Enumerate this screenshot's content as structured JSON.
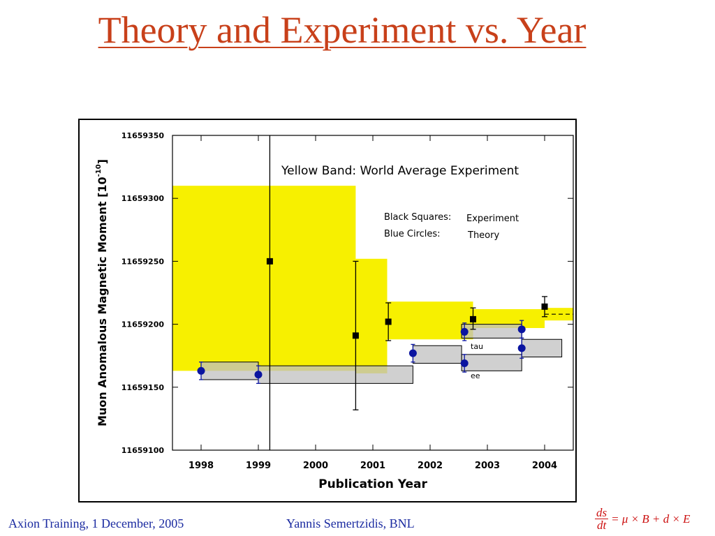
{
  "slide": {
    "title": "Theory and Experiment vs. Year",
    "footer_left": "Axion Training, 1 December, 2005",
    "footer_center": "Yannis Semertzidis, BNL",
    "equation": {
      "numerator": "ds",
      "denominator": "dt",
      "rhs": "= μ × B + d × E"
    }
  },
  "colors": {
    "title": "#c8401a",
    "footer": "#1a2aa0",
    "equation": "#cc1010",
    "band": "#f7f000",
    "theory_box": "#c0c0c0",
    "theory_point": "#0a14a0",
    "experiment_point": "#000000"
  },
  "chart_data": {
    "type": "scatter",
    "xlabel": "Publication Year",
    "ylabel": "Muon Anomalous Magnetic Moment [10",
    "ylabel_sup": "-10",
    "ylabel_end": "]",
    "xlim": [
      1997.5,
      2004.5
    ],
    "ylim": [
      11659100,
      11659350
    ],
    "x_ticks": [
      1998,
      1999,
      2000,
      2001,
      2002,
      2003,
      2004
    ],
    "x_tick_labels": [
      "1998",
      "1999",
      "2000",
      "2001",
      "2002",
      "2003",
      "2004"
    ],
    "y_ticks": [
      11659100,
      11659150,
      11659200,
      11659250,
      11659300,
      11659350
    ],
    "y_tick_labels": [
      "11659100",
      "11659150",
      "11659200",
      "11659250",
      "11659300",
      "11659350"
    ],
    "annotations": {
      "band_title": "Yellow Band: World Average Experiment",
      "legend_exp_key": "Black Squares:",
      "legend_exp_val": "Experiment",
      "legend_th_key": "Blue Circles:",
      "legend_th_val": "Theory",
      "tau": "tau",
      "ee": "ee"
    },
    "world_average_bands": [
      {
        "x0": 1997.5,
        "x1": 2000.7,
        "y0": 11659163,
        "y1": 11659310
      },
      {
        "x0": 2000.7,
        "x1": 2001.25,
        "y0": 11659161,
        "y1": 11659252
      },
      {
        "x0": 2001.25,
        "x1": 2002.75,
        "y0": 11659188,
        "y1": 11659218
      },
      {
        "x0": 2002.75,
        "x1": 2004.0,
        "y0": 11659197,
        "y1": 11659212
      },
      {
        "x0": 2004.0,
        "x1": 2004.5,
        "y0": 11659203,
        "y1": 11659213
      }
    ],
    "world_average_line": {
      "x0": 2004.0,
      "x1": 2004.5,
      "y": 11659208
    },
    "experiment": [
      {
        "x": 1999.2,
        "y": 11659250,
        "y_low": 11659050,
        "y_high": 11659450
      },
      {
        "x": 2000.7,
        "y": 11659191,
        "y_low": 11659132,
        "y_high": 11659250
      },
      {
        "x": 2001.27,
        "y": 11659202,
        "y_low": 11659187,
        "y_high": 11659217
      },
      {
        "x": 2002.75,
        "y": 11659204,
        "y_low": 11659196,
        "y_high": 11659213
      },
      {
        "x": 2004.0,
        "y": 11659214,
        "y_low": 11659206,
        "y_high": 11659222
      }
    ],
    "theory_boxes": [
      {
        "x0": 1998.0,
        "x1": 1999.0,
        "y0": 11659156,
        "y1": 11659170
      },
      {
        "x0": 1999.0,
        "x1": 2001.7,
        "y0": 11659153,
        "y1": 11659167
      },
      {
        "x0": 2001.7,
        "x1": 2002.55,
        "y0": 11659169,
        "y1": 11659183
      },
      {
        "x0": 2002.55,
        "x1": 2003.6,
        "y0": 11659189,
        "y1": 11659200
      },
      {
        "x0": 2002.55,
        "x1": 2003.6,
        "y0": 11659163,
        "y1": 11659176
      },
      {
        "x0": 2003.6,
        "x1": 2004.3,
        "y0": 11659174,
        "y1": 11659188
      }
    ],
    "theory": [
      {
        "x": 1998.0,
        "y": 11659163,
        "y_low": 11659156,
        "y_high": 11659170
      },
      {
        "x": 1999.0,
        "y": 11659160,
        "y_low": 11659153,
        "y_high": 11659167
      },
      {
        "x": 2001.7,
        "y": 11659177,
        "y_low": 11659170,
        "y_high": 11659184
      },
      {
        "x": 2002.6,
        "y": 11659194,
        "y_low": 11659187,
        "y_high": 11659201
      },
      {
        "x": 2002.6,
        "y": 11659169,
        "y_low": 11659162,
        "y_high": 11659176
      },
      {
        "x": 2003.6,
        "y": 11659196,
        "y_low": 11659189,
        "y_high": 11659203
      },
      {
        "x": 2003.6,
        "y": 11659181,
        "y_low": 11659173,
        "y_high": 11659189
      }
    ]
  }
}
